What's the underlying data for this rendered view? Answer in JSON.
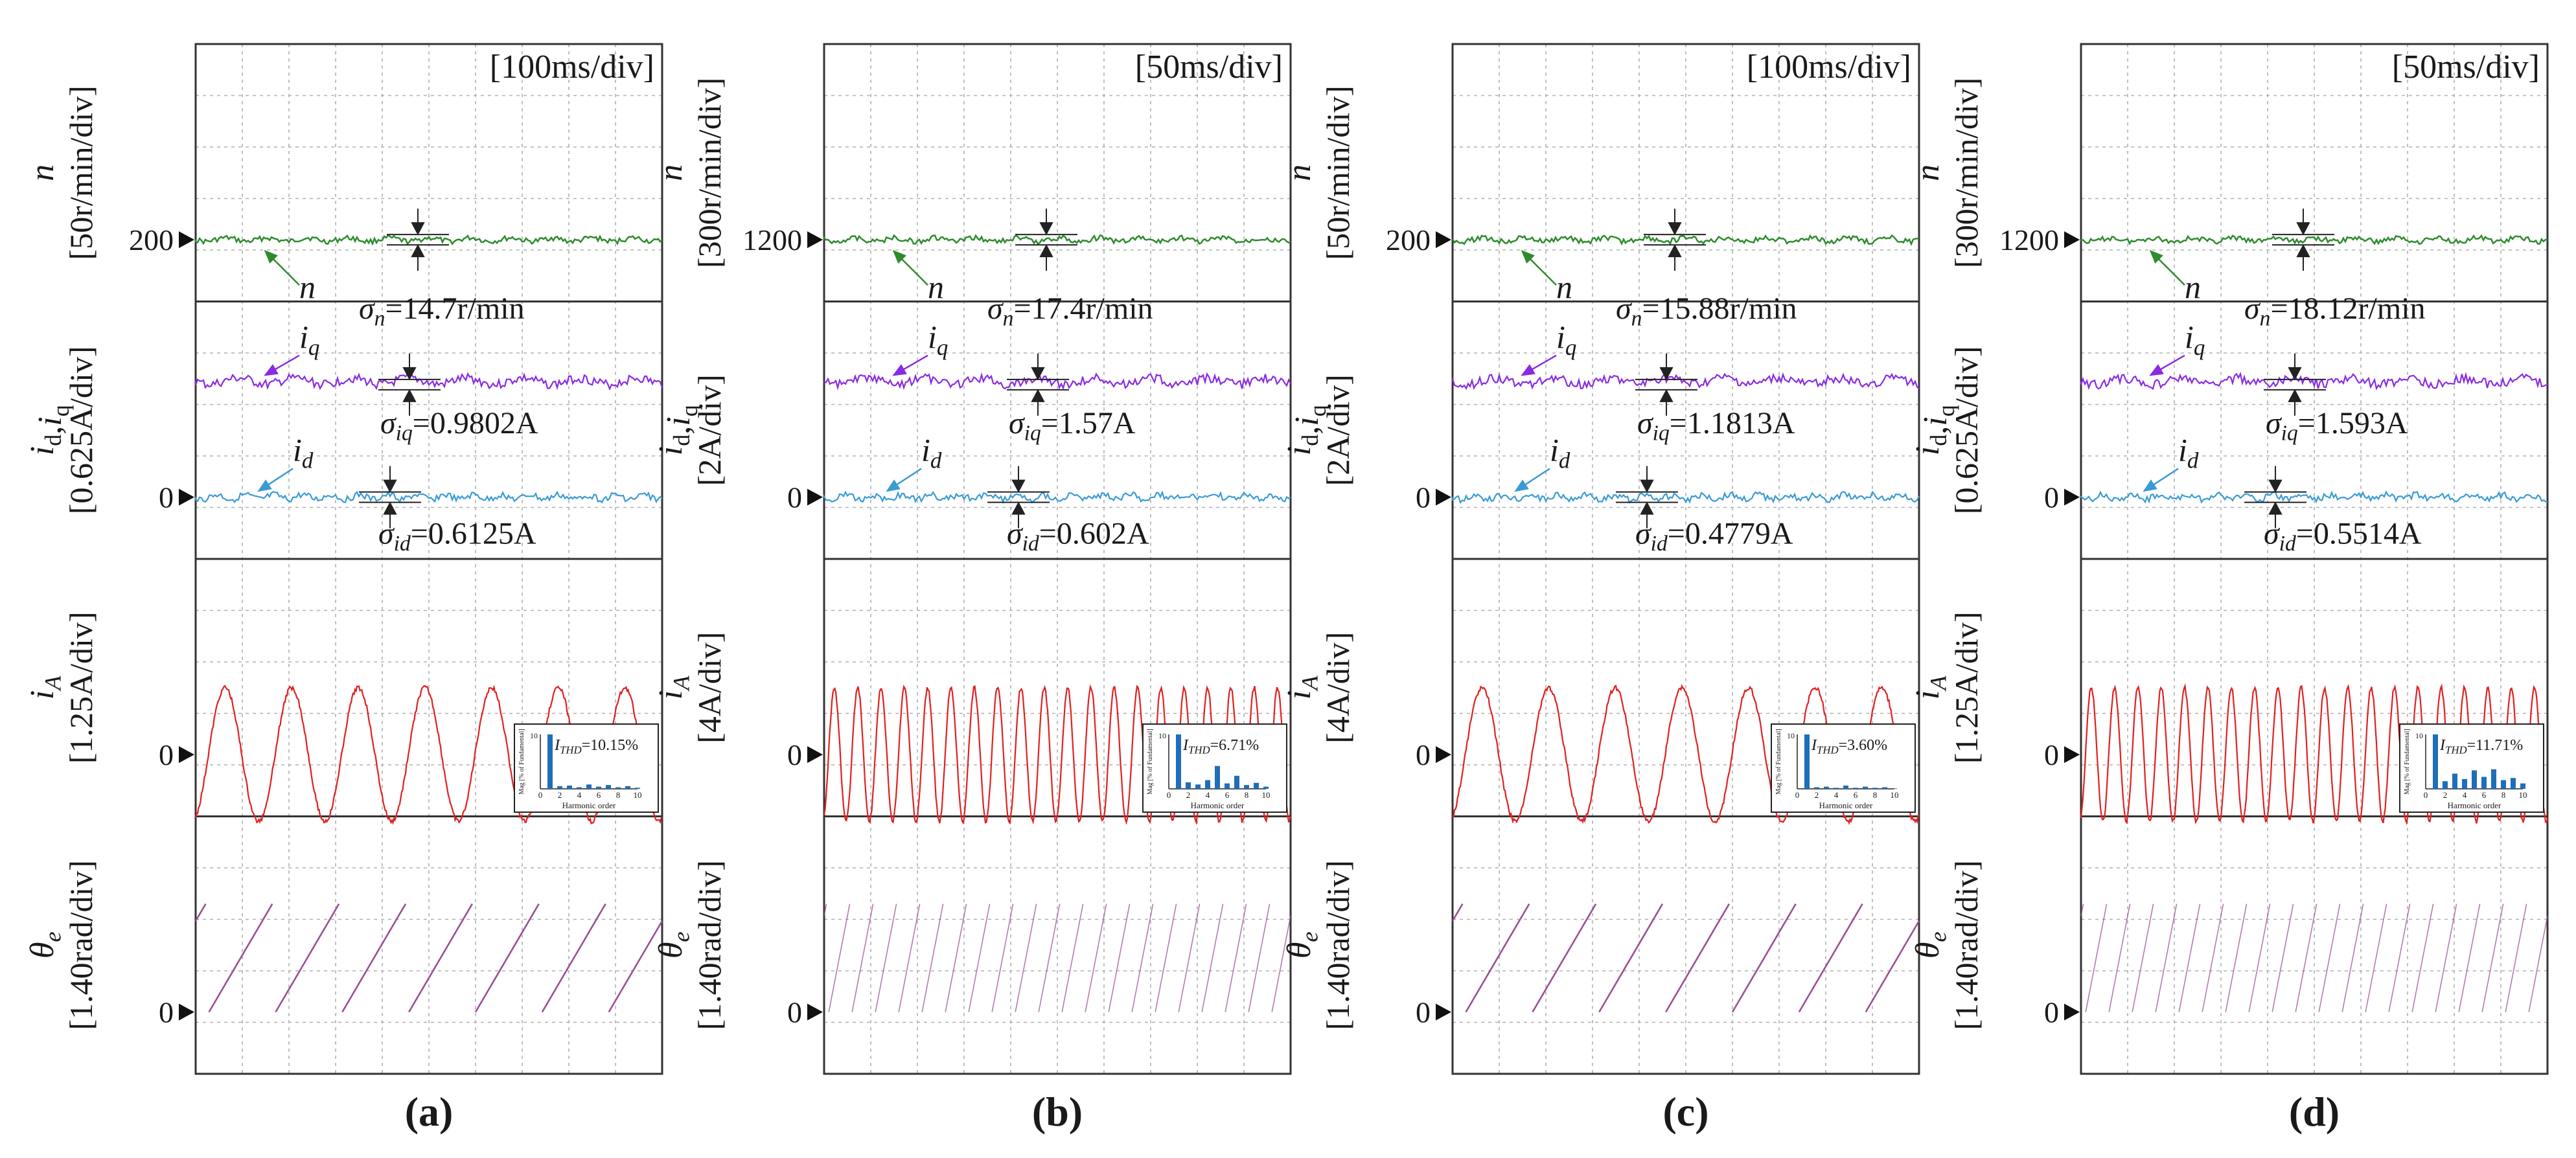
{
  "figure": {
    "panel_captions": [
      "(a)",
      "(b)",
      "(c)",
      "(d)"
    ],
    "colors": {
      "speed": "#2e8b2e",
      "iq": "#8a2be2",
      "id": "#3a9bd5",
      "ia": "#e02020",
      "theta": "#9b4f96",
      "bars": "#1f6eb8",
      "grid": "#b0b0b0",
      "border": "#333333"
    }
  },
  "chart_data": [
    {
      "type": "line",
      "panel": "(a)",
      "timebase": "[100ms/div]",
      "time_divisions": 10,
      "speed": {
        "ylabel_symbol": "n",
        "ylabel_scale": "[50r/min/div]",
        "zero_value": "200",
        "trace_label": "n",
        "sigma_sym": "σn",
        "sigma_text": "=14.7r/min",
        "level_rpm": 200
      },
      "currents": {
        "ylabel_symbol": "id,iq",
        "ylabel_scale": "[0.625A/div]",
        "zero_value": "0",
        "iq_label": "iq",
        "id_label": "id",
        "sigma_iq_sym": "σiq",
        "sigma_iq_text": "=0.9802A",
        "sigma_id_sym": "σid",
        "sigma_id_text": "=0.6125A",
        "iq_level_div": 2.5,
        "id_level_div": 0
      },
      "phase_current": {
        "ylabel_symbol": "iA",
        "ylabel_scale": "[1.25A/div]",
        "zero_value": "0",
        "amplitude_div": 1.3,
        "cycles_shown": 7,
        "thd_sym": "ITHD",
        "thd_value": "=10.15%",
        "harmonic_xlabel": "Harmonic order",
        "harmonic_ylabel": "Mag [% of Fundamental]",
        "harmonic_ylim": [
          0,
          10
        ],
        "harmonic_orders": [
          0,
          1,
          2,
          3,
          4,
          5,
          6,
          7,
          8,
          9,
          10
        ],
        "harmonic_ticks": [
          "0",
          "2",
          "4",
          "6",
          "8",
          "10"
        ],
        "harmonic_ytick": "10",
        "harmonic_mag": [
          0,
          10,
          0.5,
          0.6,
          0.3,
          0.8,
          0.4,
          0.7,
          0.3,
          0.5,
          0.2
        ]
      },
      "angle": {
        "ylabel_symbol": "θe",
        "ylabel_scale": "[1.40rad/div]",
        "zero_value": "0",
        "ramps_shown": 7
      }
    },
    {
      "type": "line",
      "panel": "(b)",
      "timebase": "[50ms/div]",
      "time_divisions": 10,
      "speed": {
        "ylabel_symbol": "n",
        "ylabel_scale": "[300r/min/div]",
        "zero_value": "1200",
        "trace_label": "n",
        "sigma_sym": "σn",
        "sigma_text": "=17.4r/min",
        "level_rpm": 1200
      },
      "currents": {
        "ylabel_symbol": "id,iq",
        "ylabel_scale": "[2A/div]",
        "zero_value": "0",
        "iq_label": "iq",
        "id_label": "id",
        "sigma_iq_sym": "σiq",
        "sigma_iq_text": "=1.57A",
        "sigma_id_sym": "σid",
        "sigma_id_text": "=0.602A",
        "iq_level_div": 2.5,
        "id_level_div": 0
      },
      "phase_current": {
        "ylabel_symbol": "iA",
        "ylabel_scale": "[4A/div]",
        "zero_value": "0",
        "amplitude_div": 1.3,
        "cycles_shown": 20,
        "thd_sym": "ITHD",
        "thd_value": "=6.71%",
        "harmonic_xlabel": "Harmonic order",
        "harmonic_ylabel": "Mag [% of Fundamental]",
        "harmonic_ylim": [
          0,
          10
        ],
        "harmonic_orders": [
          0,
          1,
          2,
          3,
          4,
          5,
          6,
          7,
          8,
          9,
          10
        ],
        "harmonic_ticks": [
          "0",
          "2",
          "4",
          "6",
          "8",
          "10"
        ],
        "harmonic_ytick": "10",
        "harmonic_mag": [
          0,
          10,
          1.2,
          0.8,
          1.6,
          4.2,
          1.0,
          2.4,
          0.7,
          1.1,
          0.4
        ]
      },
      "angle": {
        "ylabel_symbol": "θe",
        "ylabel_scale": "[1.40rad/div]",
        "zero_value": "0",
        "ramps_shown": 20
      }
    },
    {
      "type": "line",
      "panel": "(c)",
      "timebase": "[100ms/div]",
      "time_divisions": 10,
      "speed": {
        "ylabel_symbol": "n",
        "ylabel_scale": "[50r/min/div]",
        "zero_value": "200",
        "trace_label": "n",
        "sigma_sym": "σn",
        "sigma_text": "=15.88r/min",
        "level_rpm": 200
      },
      "currents": {
        "ylabel_symbol": "id,iq",
        "ylabel_scale": "[2A/div]",
        "zero_value": "0",
        "iq_label": "iq",
        "id_label": "id",
        "sigma_iq_sym": "σiq",
        "sigma_iq_text": "=1.1813A",
        "sigma_id_sym": "σid",
        "sigma_id_text": "=0.4779A",
        "iq_level_div": 2.5,
        "id_level_div": 0
      },
      "phase_current": {
        "ylabel_symbol": "iA",
        "ylabel_scale": "[4A/div]",
        "zero_value": "0",
        "amplitude_div": 1.3,
        "cycles_shown": 7,
        "thd_sym": "ITHD",
        "thd_value": "=3.60%",
        "harmonic_xlabel": "Harmonic order",
        "harmonic_ylabel": "Mag [% of Fundamental]",
        "harmonic_ylim": [
          0,
          10
        ],
        "harmonic_orders": [
          0,
          1,
          2,
          3,
          4,
          5,
          6,
          7,
          8,
          9,
          10
        ],
        "harmonic_ticks": [
          "0",
          "2",
          "4",
          "6",
          "8",
          "10"
        ],
        "harmonic_ytick": "10",
        "harmonic_mag": [
          0,
          10,
          0.3,
          0.4,
          0.2,
          0.6,
          0.2,
          0.4,
          0.2,
          0.3,
          0.1
        ]
      },
      "angle": {
        "ylabel_symbol": "θe",
        "ylabel_scale": "[1.40rad/div]",
        "zero_value": "0",
        "ramps_shown": 7
      }
    },
    {
      "type": "line",
      "panel": "(d)",
      "timebase": "[50ms/div]",
      "time_divisions": 10,
      "speed": {
        "ylabel_symbol": "n",
        "ylabel_scale": "[300r/min/div]",
        "zero_value": "1200",
        "trace_label": "n",
        "sigma_sym": "σn",
        "sigma_text": "=18.12r/min",
        "level_rpm": 1200
      },
      "currents": {
        "ylabel_symbol": "id,iq",
        "ylabel_scale": "[0.625A/div]",
        "zero_value": "0",
        "iq_label": "iq",
        "id_label": "id",
        "sigma_iq_sym": "σiq",
        "sigma_iq_text": "=1.593A",
        "sigma_id_sym": "σid",
        "sigma_id_text": "=0.5514A",
        "iq_level_div": 2.5,
        "id_level_div": 0
      },
      "phase_current": {
        "ylabel_symbol": "iA",
        "ylabel_scale": "[1.25A/div]",
        "zero_value": "0",
        "amplitude_div": 1.3,
        "cycles_shown": 20,
        "thd_sym": "ITHD",
        "thd_value": "=11.71%",
        "harmonic_xlabel": "Harmonic order",
        "harmonic_ylabel": "Mag [% of Fundamental]",
        "harmonic_ylim": [
          0,
          10
        ],
        "harmonic_orders": [
          0,
          1,
          2,
          3,
          4,
          5,
          6,
          7,
          8,
          9,
          10
        ],
        "harmonic_ticks": [
          "0",
          "2",
          "4",
          "6",
          "8",
          "10"
        ],
        "harmonic_ytick": "10",
        "harmonic_mag": [
          0,
          10,
          1.4,
          2.8,
          1.8,
          3.4,
          2.2,
          3.6,
          1.6,
          2.0,
          1.0
        ]
      },
      "angle": {
        "ylabel_symbol": "θe",
        "ylabel_scale": "[1.40rad/div]",
        "zero_value": "0",
        "ramps_shown": 20
      }
    }
  ]
}
